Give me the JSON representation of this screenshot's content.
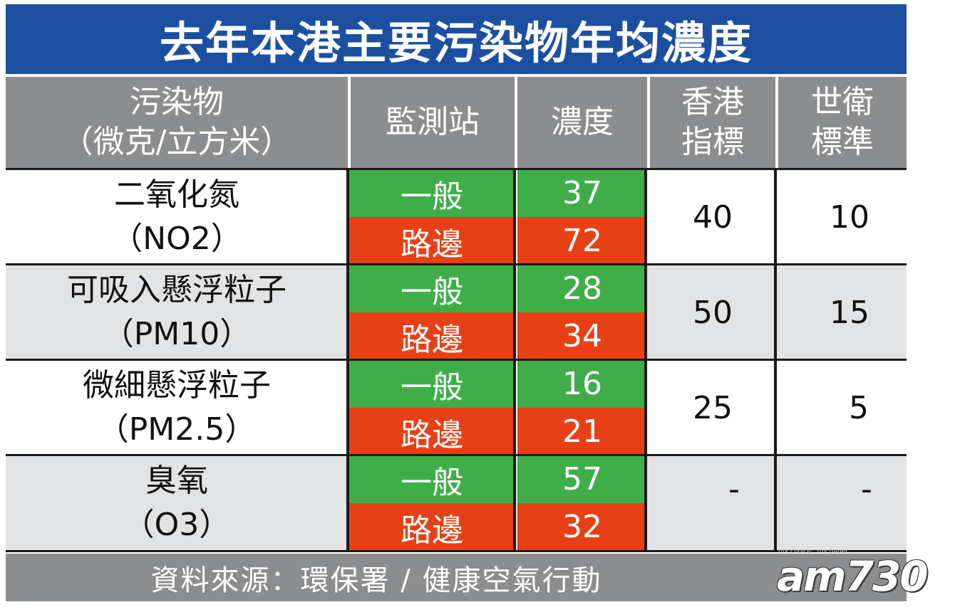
{
  "title": "去年本港主要污染物年均濃度",
  "headers": {
    "pollutant": [
      "污染物",
      "（微克/立方米）"
    ],
    "station": "監測站",
    "concentration": "濃度",
    "hk_standard": [
      "香港",
      "指標"
    ],
    "who_standard": [
      "世衛",
      "標準"
    ]
  },
  "rows": [
    {
      "pollutant": [
        "二氧化氮",
        "（NO2）"
      ],
      "stations": [
        {
          "label": "一般",
          "value": "37",
          "color": "#3fae49"
        },
        {
          "label": "路邊",
          "value": "72",
          "color": "#e84016"
        }
      ],
      "hk_standard": "40",
      "who_standard": "10"
    },
    {
      "pollutant": [
        "可吸入懸浮粒子",
        "（PM10）"
      ],
      "stations": [
        {
          "label": "一般",
          "value": "28",
          "color": "#3fae49"
        },
        {
          "label": "路邊",
          "value": "34",
          "color": "#e84016"
        }
      ],
      "hk_standard": "50",
      "who_standard": "15"
    },
    {
      "pollutant": [
        "微細懸浮粒子",
        "（PM2.5）"
      ],
      "stations": [
        {
          "label": "一般",
          "value": "16",
          "color": "#3fae49"
        },
        {
          "label": "路邊",
          "value": "21",
          "color": "#e84016"
        }
      ],
      "hk_standard": "25",
      "who_standard": "5"
    },
    {
      "pollutant": [
        "臭氧",
        "（O3）"
      ],
      "stations": [
        {
          "label": "一般",
          "value": "57",
          "color": "#3fae49"
        },
        {
          "label": "路邊",
          "value": "32",
          "color": "#e84016"
        }
      ],
      "hk_standard": "-",
      "who_standard": "-"
    }
  ],
  "footer": {
    "source": "資料來源：環保署 / 健康空氣行動"
  },
  "logo": {
    "text": "am730",
    "tagline": "my choice . my paper"
  },
  "colors": {
    "title_bg": "#1c4fa0",
    "header_bg": "#8c8d8f",
    "general_station": "#3fae49",
    "roadside_station": "#e84016",
    "alt_row": "#e2e3e5"
  }
}
